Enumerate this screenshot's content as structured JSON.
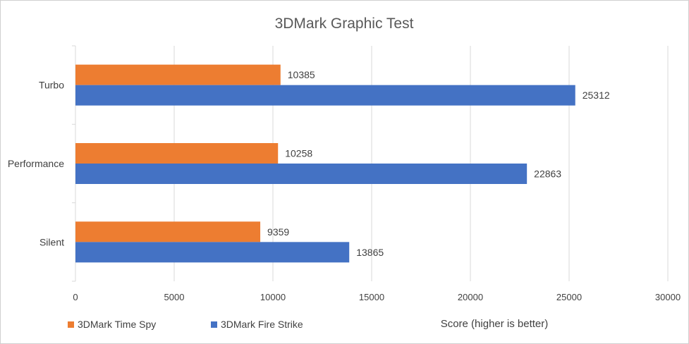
{
  "chart_data": {
    "type": "bar",
    "orientation": "horizontal",
    "title": "3DMark Graphic Test",
    "xlabel": "Score (higher is better)",
    "ylabel": "",
    "categories": [
      "Turbo",
      "Performance",
      "Silent"
    ],
    "series": [
      {
        "name": "3DMark Time Spy",
        "values": [
          10385,
          10258,
          9359
        ],
        "color": "#ED7D31"
      },
      {
        "name": "3DMark Fire Strike",
        "values": [
          25312,
          22863,
          13865
        ],
        "color": "#4472C4"
      }
    ],
    "xlim": [
      0,
      30000
    ],
    "ticks": [
      "0",
      "5000",
      "10000",
      "15000",
      "20000",
      "25000",
      "30000"
    ],
    "grid": true,
    "legend_position": "bottom-left",
    "gridline_color": "#d9d9d9"
  }
}
